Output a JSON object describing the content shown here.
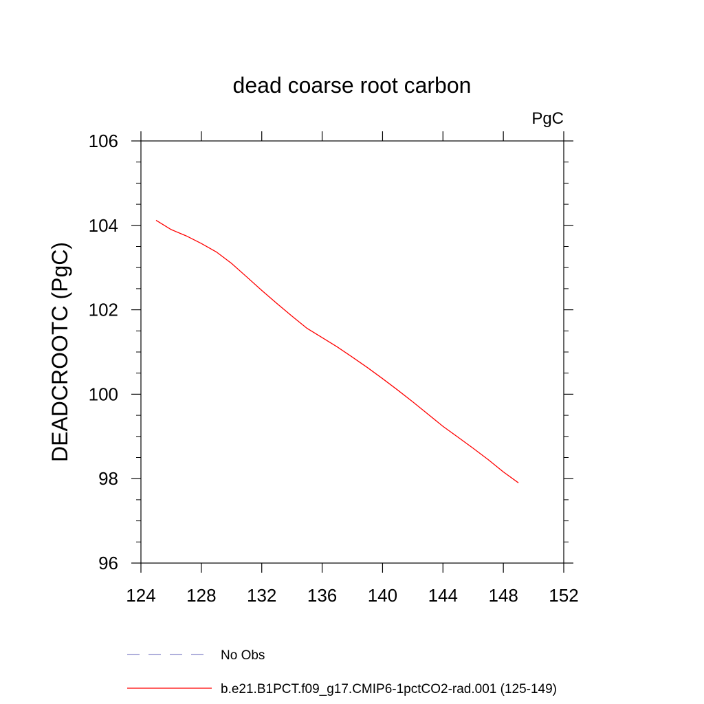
{
  "chart_data": {
    "type": "line",
    "title": "dead coarse root carbon",
    "units_label": "PgC",
    "xlabel": "",
    "ylabel": "DEADCROOTC  (PgC)",
    "xlim": [
      124,
      152
    ],
    "ylim": [
      96,
      106
    ],
    "x_ticks": [
      124,
      128,
      132,
      136,
      140,
      144,
      148,
      152
    ],
    "y_ticks": [
      96,
      98,
      100,
      102,
      104,
      106
    ],
    "grid": false,
    "legend_position": "bottom",
    "series": [
      {
        "name": "b.e21.B1PCT.f09_g17.CMIP6-1pctCO2-rad.001 (125-149)",
        "color": "#ff0000",
        "style": "solid",
        "x": [
          125,
          126,
          127,
          128,
          129,
          130,
          131,
          132,
          133,
          134,
          135,
          136,
          137,
          138,
          139,
          140,
          141,
          142,
          143,
          144,
          145,
          146,
          147,
          148,
          149
        ],
        "y": [
          104.12,
          103.9,
          103.75,
          103.57,
          103.37,
          103.1,
          102.78,
          102.46,
          102.15,
          101.85,
          101.56,
          101.34,
          101.12,
          100.88,
          100.63,
          100.37,
          100.1,
          99.82,
          99.53,
          99.24,
          98.98,
          98.72,
          98.45,
          98.16,
          97.9
        ]
      }
    ],
    "legend": [
      {
        "label": "No Obs",
        "color": "#8080c8",
        "style": "dashed"
      },
      {
        "label": "b.e21.B1PCT.f09_g17.CMIP6-1pctCO2-rad.001 (125-149)",
        "color": "#ff0000",
        "style": "solid"
      }
    ]
  }
}
